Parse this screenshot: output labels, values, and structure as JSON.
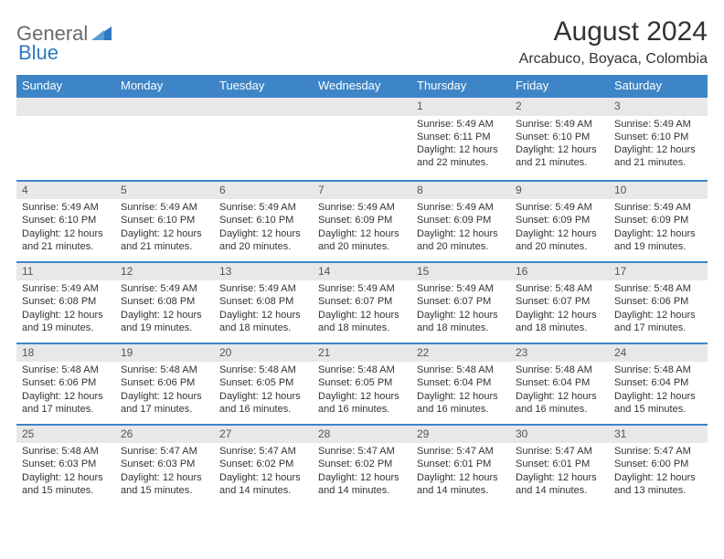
{
  "logo": {
    "text1": "General",
    "text2": "Blue"
  },
  "title": "August 2024",
  "location": "Arcabuco, Boyaca, Colombia",
  "colors": {
    "header_bg": "#3d85c6",
    "header_text": "#ffffff",
    "border": "#3d85c6",
    "daybar_bg": "#e8e8e8",
    "body_text": "#333333",
    "logo_gray": "#6b6b6b",
    "logo_blue": "#2f78c2"
  },
  "weekdays": [
    "Sunday",
    "Monday",
    "Tuesday",
    "Wednesday",
    "Thursday",
    "Friday",
    "Saturday"
  ],
  "weeks": [
    [
      null,
      null,
      null,
      null,
      {
        "n": "1",
        "sr": "5:49 AM",
        "ss": "6:11 PM",
        "dl": "12 hours and 22 minutes."
      },
      {
        "n": "2",
        "sr": "5:49 AM",
        "ss": "6:10 PM",
        "dl": "12 hours and 21 minutes."
      },
      {
        "n": "3",
        "sr": "5:49 AM",
        "ss": "6:10 PM",
        "dl": "12 hours and 21 minutes."
      }
    ],
    [
      {
        "n": "4",
        "sr": "5:49 AM",
        "ss": "6:10 PM",
        "dl": "12 hours and 21 minutes."
      },
      {
        "n": "5",
        "sr": "5:49 AM",
        "ss": "6:10 PM",
        "dl": "12 hours and 21 minutes."
      },
      {
        "n": "6",
        "sr": "5:49 AM",
        "ss": "6:10 PM",
        "dl": "12 hours and 20 minutes."
      },
      {
        "n": "7",
        "sr": "5:49 AM",
        "ss": "6:09 PM",
        "dl": "12 hours and 20 minutes."
      },
      {
        "n": "8",
        "sr": "5:49 AM",
        "ss": "6:09 PM",
        "dl": "12 hours and 20 minutes."
      },
      {
        "n": "9",
        "sr": "5:49 AM",
        "ss": "6:09 PM",
        "dl": "12 hours and 20 minutes."
      },
      {
        "n": "10",
        "sr": "5:49 AM",
        "ss": "6:09 PM",
        "dl": "12 hours and 19 minutes."
      }
    ],
    [
      {
        "n": "11",
        "sr": "5:49 AM",
        "ss": "6:08 PM",
        "dl": "12 hours and 19 minutes."
      },
      {
        "n": "12",
        "sr": "5:49 AM",
        "ss": "6:08 PM",
        "dl": "12 hours and 19 minutes."
      },
      {
        "n": "13",
        "sr": "5:49 AM",
        "ss": "6:08 PM",
        "dl": "12 hours and 18 minutes."
      },
      {
        "n": "14",
        "sr": "5:49 AM",
        "ss": "6:07 PM",
        "dl": "12 hours and 18 minutes."
      },
      {
        "n": "15",
        "sr": "5:49 AM",
        "ss": "6:07 PM",
        "dl": "12 hours and 18 minutes."
      },
      {
        "n": "16",
        "sr": "5:48 AM",
        "ss": "6:07 PM",
        "dl": "12 hours and 18 minutes."
      },
      {
        "n": "17",
        "sr": "5:48 AM",
        "ss": "6:06 PM",
        "dl": "12 hours and 17 minutes."
      }
    ],
    [
      {
        "n": "18",
        "sr": "5:48 AM",
        "ss": "6:06 PM",
        "dl": "12 hours and 17 minutes."
      },
      {
        "n": "19",
        "sr": "5:48 AM",
        "ss": "6:06 PM",
        "dl": "12 hours and 17 minutes."
      },
      {
        "n": "20",
        "sr": "5:48 AM",
        "ss": "6:05 PM",
        "dl": "12 hours and 16 minutes."
      },
      {
        "n": "21",
        "sr": "5:48 AM",
        "ss": "6:05 PM",
        "dl": "12 hours and 16 minutes."
      },
      {
        "n": "22",
        "sr": "5:48 AM",
        "ss": "6:04 PM",
        "dl": "12 hours and 16 minutes."
      },
      {
        "n": "23",
        "sr": "5:48 AM",
        "ss": "6:04 PM",
        "dl": "12 hours and 16 minutes."
      },
      {
        "n": "24",
        "sr": "5:48 AM",
        "ss": "6:04 PM",
        "dl": "12 hours and 15 minutes."
      }
    ],
    [
      {
        "n": "25",
        "sr": "5:48 AM",
        "ss": "6:03 PM",
        "dl": "12 hours and 15 minutes."
      },
      {
        "n": "26",
        "sr": "5:47 AM",
        "ss": "6:03 PM",
        "dl": "12 hours and 15 minutes."
      },
      {
        "n": "27",
        "sr": "5:47 AM",
        "ss": "6:02 PM",
        "dl": "12 hours and 14 minutes."
      },
      {
        "n": "28",
        "sr": "5:47 AM",
        "ss": "6:02 PM",
        "dl": "12 hours and 14 minutes."
      },
      {
        "n": "29",
        "sr": "5:47 AM",
        "ss": "6:01 PM",
        "dl": "12 hours and 14 minutes."
      },
      {
        "n": "30",
        "sr": "5:47 AM",
        "ss": "6:01 PM",
        "dl": "12 hours and 14 minutes."
      },
      {
        "n": "31",
        "sr": "5:47 AM",
        "ss": "6:00 PM",
        "dl": "12 hours and 13 minutes."
      }
    ]
  ],
  "labels": {
    "sunrise": "Sunrise:",
    "sunset": "Sunset:",
    "daylight": "Daylight:"
  }
}
